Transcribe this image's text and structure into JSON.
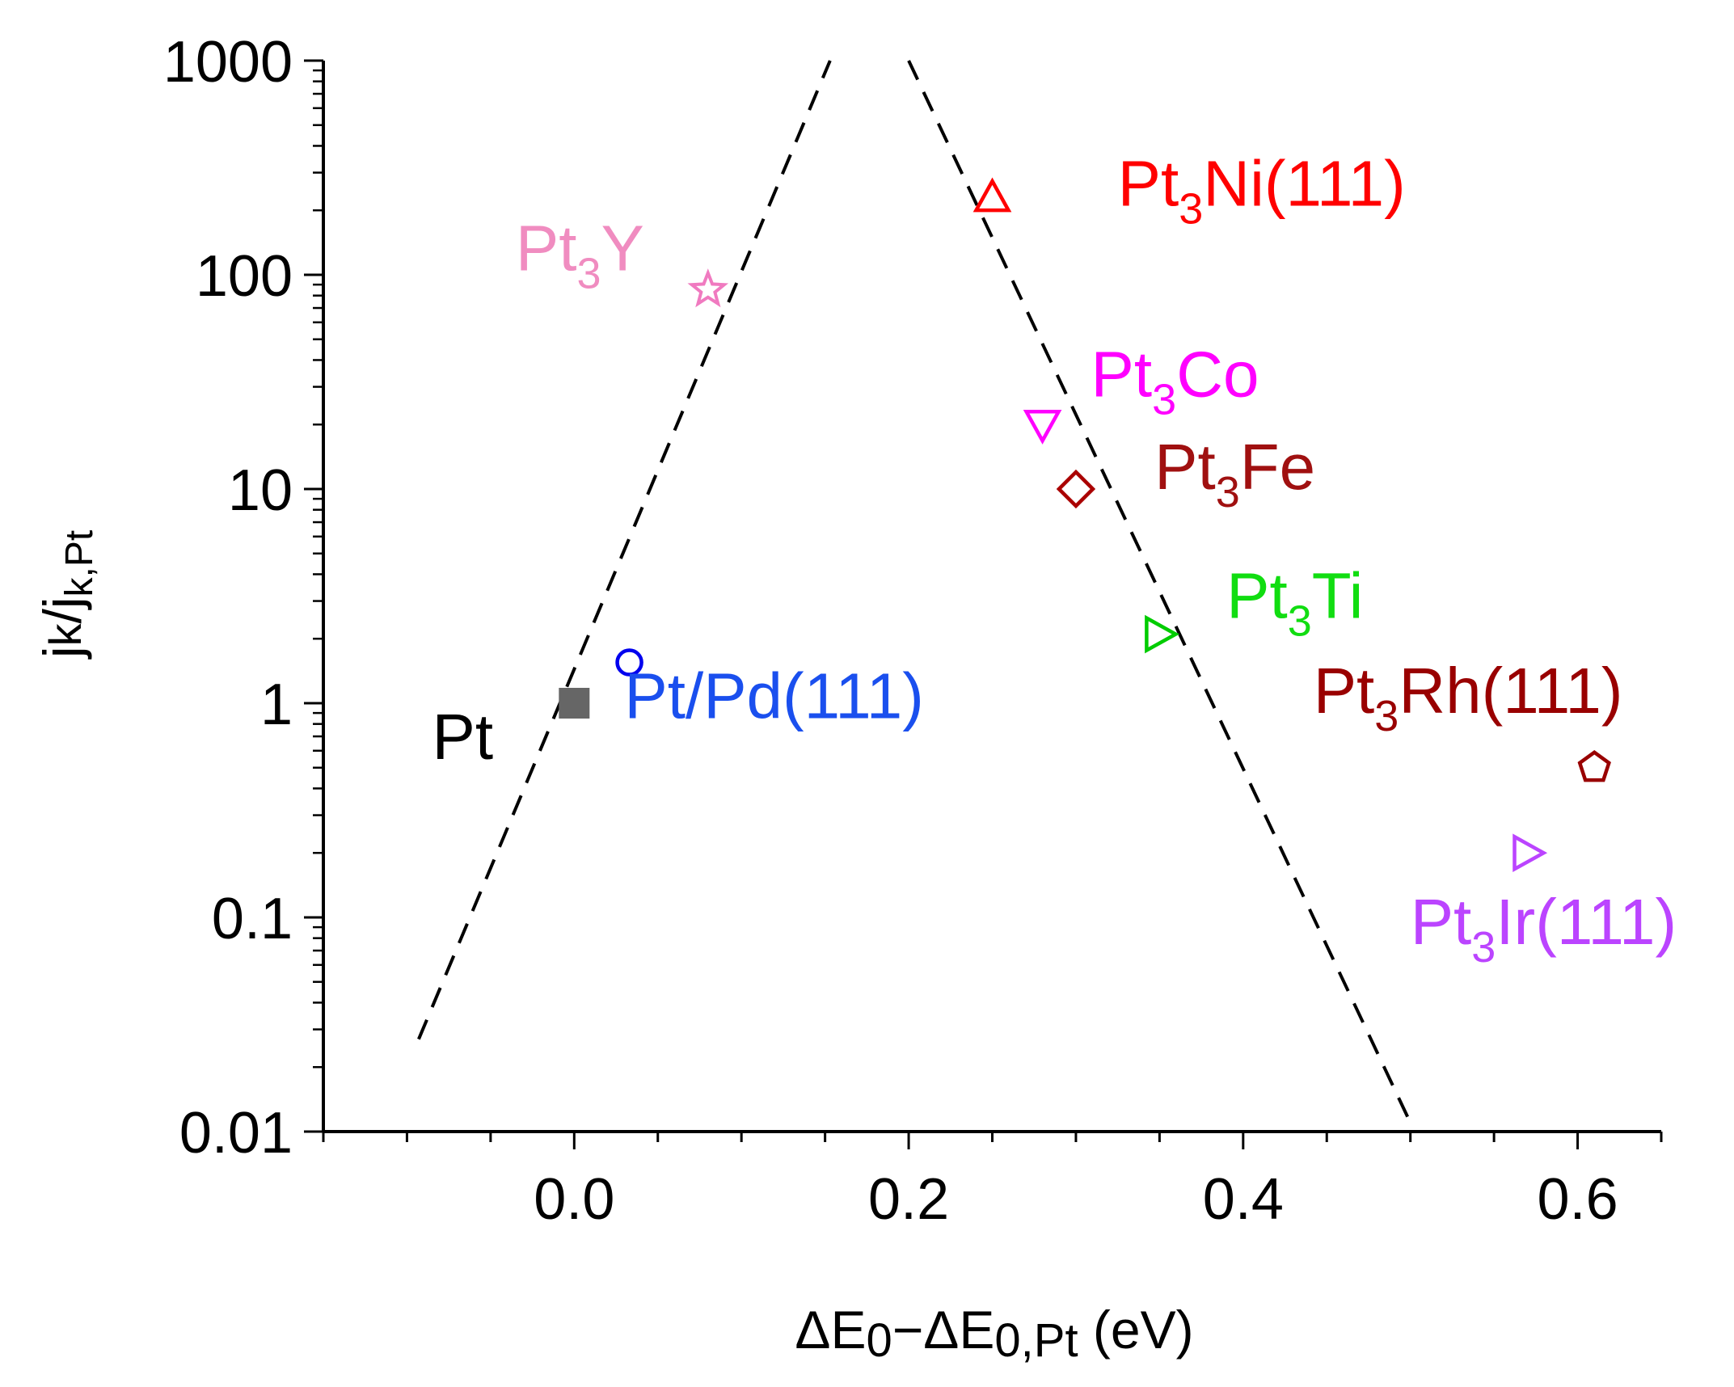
{
  "chart_data": {
    "type": "scatter",
    "title": "",
    "xlabel": "ΔE0−ΔE0,Pt (eV)",
    "xlabel_parts": {
      "delta1": "ΔE",
      "sub1": "0",
      "minus": "−ΔE",
      "sub2": "0,Pt",
      "unit": " (eV)"
    },
    "ylabel": "jk/jk,Pt",
    "ylabel_parts": {
      "j1": "j",
      "k1": "k",
      "slash": "/j",
      "k2": "k,Pt"
    },
    "xlim": [
      -0.15,
      0.65
    ],
    "ylim": [
      0.01,
      1000
    ],
    "yscale": "log",
    "xticks": [
      0.0,
      0.2,
      0.4,
      0.6
    ],
    "xtick_labels": [
      "0.0",
      "0.2",
      "0.4",
      "0.6"
    ],
    "yticks": [
      0.01,
      0.1,
      1,
      10,
      100,
      1000
    ],
    "ytick_labels": [
      "0.01",
      "0.1",
      "1",
      "10",
      "100",
      "1000"
    ],
    "grid": false,
    "legend": "none",
    "points": [
      {
        "id": "pt",
        "base": "Pt",
        "sub": "",
        "suffix": "",
        "x": 0.0,
        "y": 1.0,
        "marker": "square-filled",
        "color": "#666666",
        "label_color": "#000000",
        "label_x": -0.085,
        "label_y": 0.55
      },
      {
        "id": "ptpd",
        "base": "Pt/Pd(111)",
        "sub": "",
        "suffix": "",
        "x": 0.033,
        "y": 1.55,
        "marker": "circle",
        "color": "#0000ee",
        "label_color": "#1a4fee",
        "label_x": 0.03,
        "label_y": 0.85
      },
      {
        "id": "pt3y",
        "base": "Pt",
        "sub": "3",
        "suffix": "Y",
        "x": 0.08,
        "y": 85,
        "marker": "star",
        "color": "#f07ac0",
        "label_color": "#f08cc0",
        "label_x": -0.035,
        "label_y": 105
      },
      {
        "id": "pt3ni",
        "base": "Pt",
        "sub": "3",
        "suffix": "Ni(111)",
        "x": 0.25,
        "y": 230,
        "marker": "triangle-up",
        "color": "#ff0000",
        "label_color": "#ff0000",
        "label_x": 0.325,
        "label_y": 210
      },
      {
        "id": "pt3co",
        "base": "Pt",
        "sub": "3",
        "suffix": "Co",
        "x": 0.28,
        "y": 20,
        "marker": "triangle-down",
        "color": "#ff00ff",
        "label_color": "#ff00ff",
        "label_x": 0.309,
        "label_y": 27
      },
      {
        "id": "pt3fe",
        "base": "Pt",
        "sub": "3",
        "suffix": "Fe",
        "x": 0.3,
        "y": 10,
        "marker": "diamond",
        "color": "#aa0000",
        "label_color": "#a01010",
        "label_x": 0.347,
        "label_y": 10
      },
      {
        "id": "pt3ti",
        "base": "Pt",
        "sub": "3",
        "suffix": "Ti",
        "x": 0.35,
        "y": 2.1,
        "marker": "triangle-right",
        "color": "#00cc00",
        "label_color": "#11dd11",
        "label_x": 0.39,
        "label_y": 2.5
      },
      {
        "id": "pt3rh",
        "base": "Pt",
        "sub": "3",
        "suffix": "Rh(111)",
        "x": 0.61,
        "y": 0.5,
        "marker": "pentagon",
        "color": "#990000",
        "label_color": "#990000",
        "label_x": 0.442,
        "label_y": 0.9
      },
      {
        "id": "pt3ir",
        "base": "Pt",
        "sub": "3",
        "suffix": "Ir(111)",
        "x": 0.57,
        "y": 0.2,
        "marker": "triangle-right",
        "color": "#bb44ff",
        "label_color": "#bb44ff",
        "label_x": 0.5,
        "label_y": 0.075
      }
    ],
    "volcano_lines": [
      {
        "name": "left-branch",
        "style": "dashed",
        "from": [
          -0.093,
          0.027
        ],
        "to": [
          0.153,
          1000
        ]
      },
      {
        "name": "right-branch",
        "style": "dashed",
        "from": [
          0.2,
          1000
        ],
        "to": [
          0.5,
          0.011
        ]
      }
    ]
  }
}
